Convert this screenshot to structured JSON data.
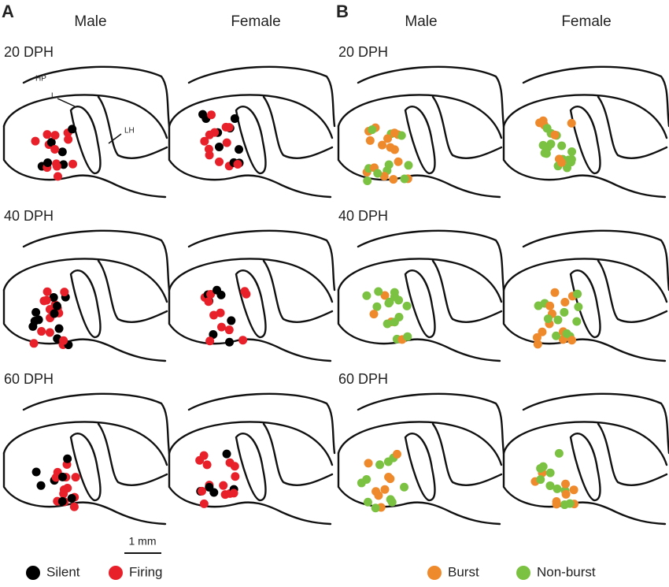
{
  "panels": [
    {
      "letter": "A",
      "columns": [
        "Male",
        "Female"
      ],
      "rows": [
        "20 DPH",
        "40 DPH",
        "60 DPH"
      ],
      "region_labels": [
        "HP",
        "L",
        "LH"
      ],
      "scale_bar": "1 mm",
      "legend": [
        {
          "label": "Silent",
          "color": "#000000"
        },
        {
          "label": "Firing",
          "color": "#e8202a"
        }
      ]
    },
    {
      "letter": "B",
      "columns": [
        "Male",
        "Female"
      ],
      "rows": [
        "20 DPH",
        "40 DPH",
        "60 DPH"
      ],
      "legend": [
        {
          "label": "Burst",
          "color": "#ef8a2c"
        },
        {
          "label": "Non-burst",
          "color": "#7cc242"
        }
      ]
    }
  ]
}
